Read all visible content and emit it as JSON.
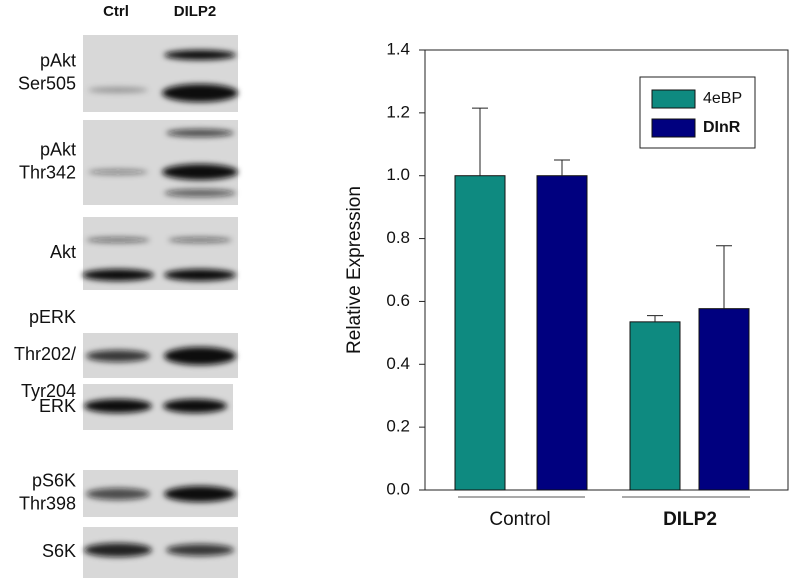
{
  "blot": {
    "columns": [
      "Ctrl",
      "DILP2"
    ],
    "rows": [
      [
        "pAkt",
        "Ser505"
      ],
      [
        "pAkt",
        "Thr342"
      ],
      [
        "Akt"
      ],
      [
        "pERK",
        "Thr202/",
        "Tyr204"
      ],
      [
        "ERK"
      ],
      [
        "pS6K",
        "Thr398"
      ],
      [
        "S6K"
      ]
    ]
  },
  "chart_data": {
    "type": "bar",
    "y_label": "Relative Expression",
    "categories": [
      "Control",
      "DILP2"
    ],
    "series": [
      {
        "name": "4eBP",
        "color": "#0e8a80",
        "values": [
          1.0,
          0.535
        ],
        "errors": [
          0.215,
          0.02
        ]
      },
      {
        "name": "DInR",
        "color": "#00007f",
        "values": [
          1.0,
          0.577
        ],
        "errors": [
          0.05,
          0.2
        ]
      }
    ],
    "ylim": [
      0,
      1.4
    ],
    "yticks": [
      {
        "value": 0,
        "label": "0.0"
      },
      {
        "value": 0.2,
        "label": "0.2"
      },
      {
        "value": 0.4,
        "label": "0.4"
      },
      {
        "value": 0.6,
        "label": "0.6"
      },
      {
        "value": 0.8,
        "label": "0.8"
      },
      {
        "value": 1.0,
        "label": "1.0"
      },
      {
        "value": 1.2,
        "label": "1.2"
      },
      {
        "value": 1.4,
        "label": "1.4"
      }
    ],
    "legend": "top-right"
  }
}
